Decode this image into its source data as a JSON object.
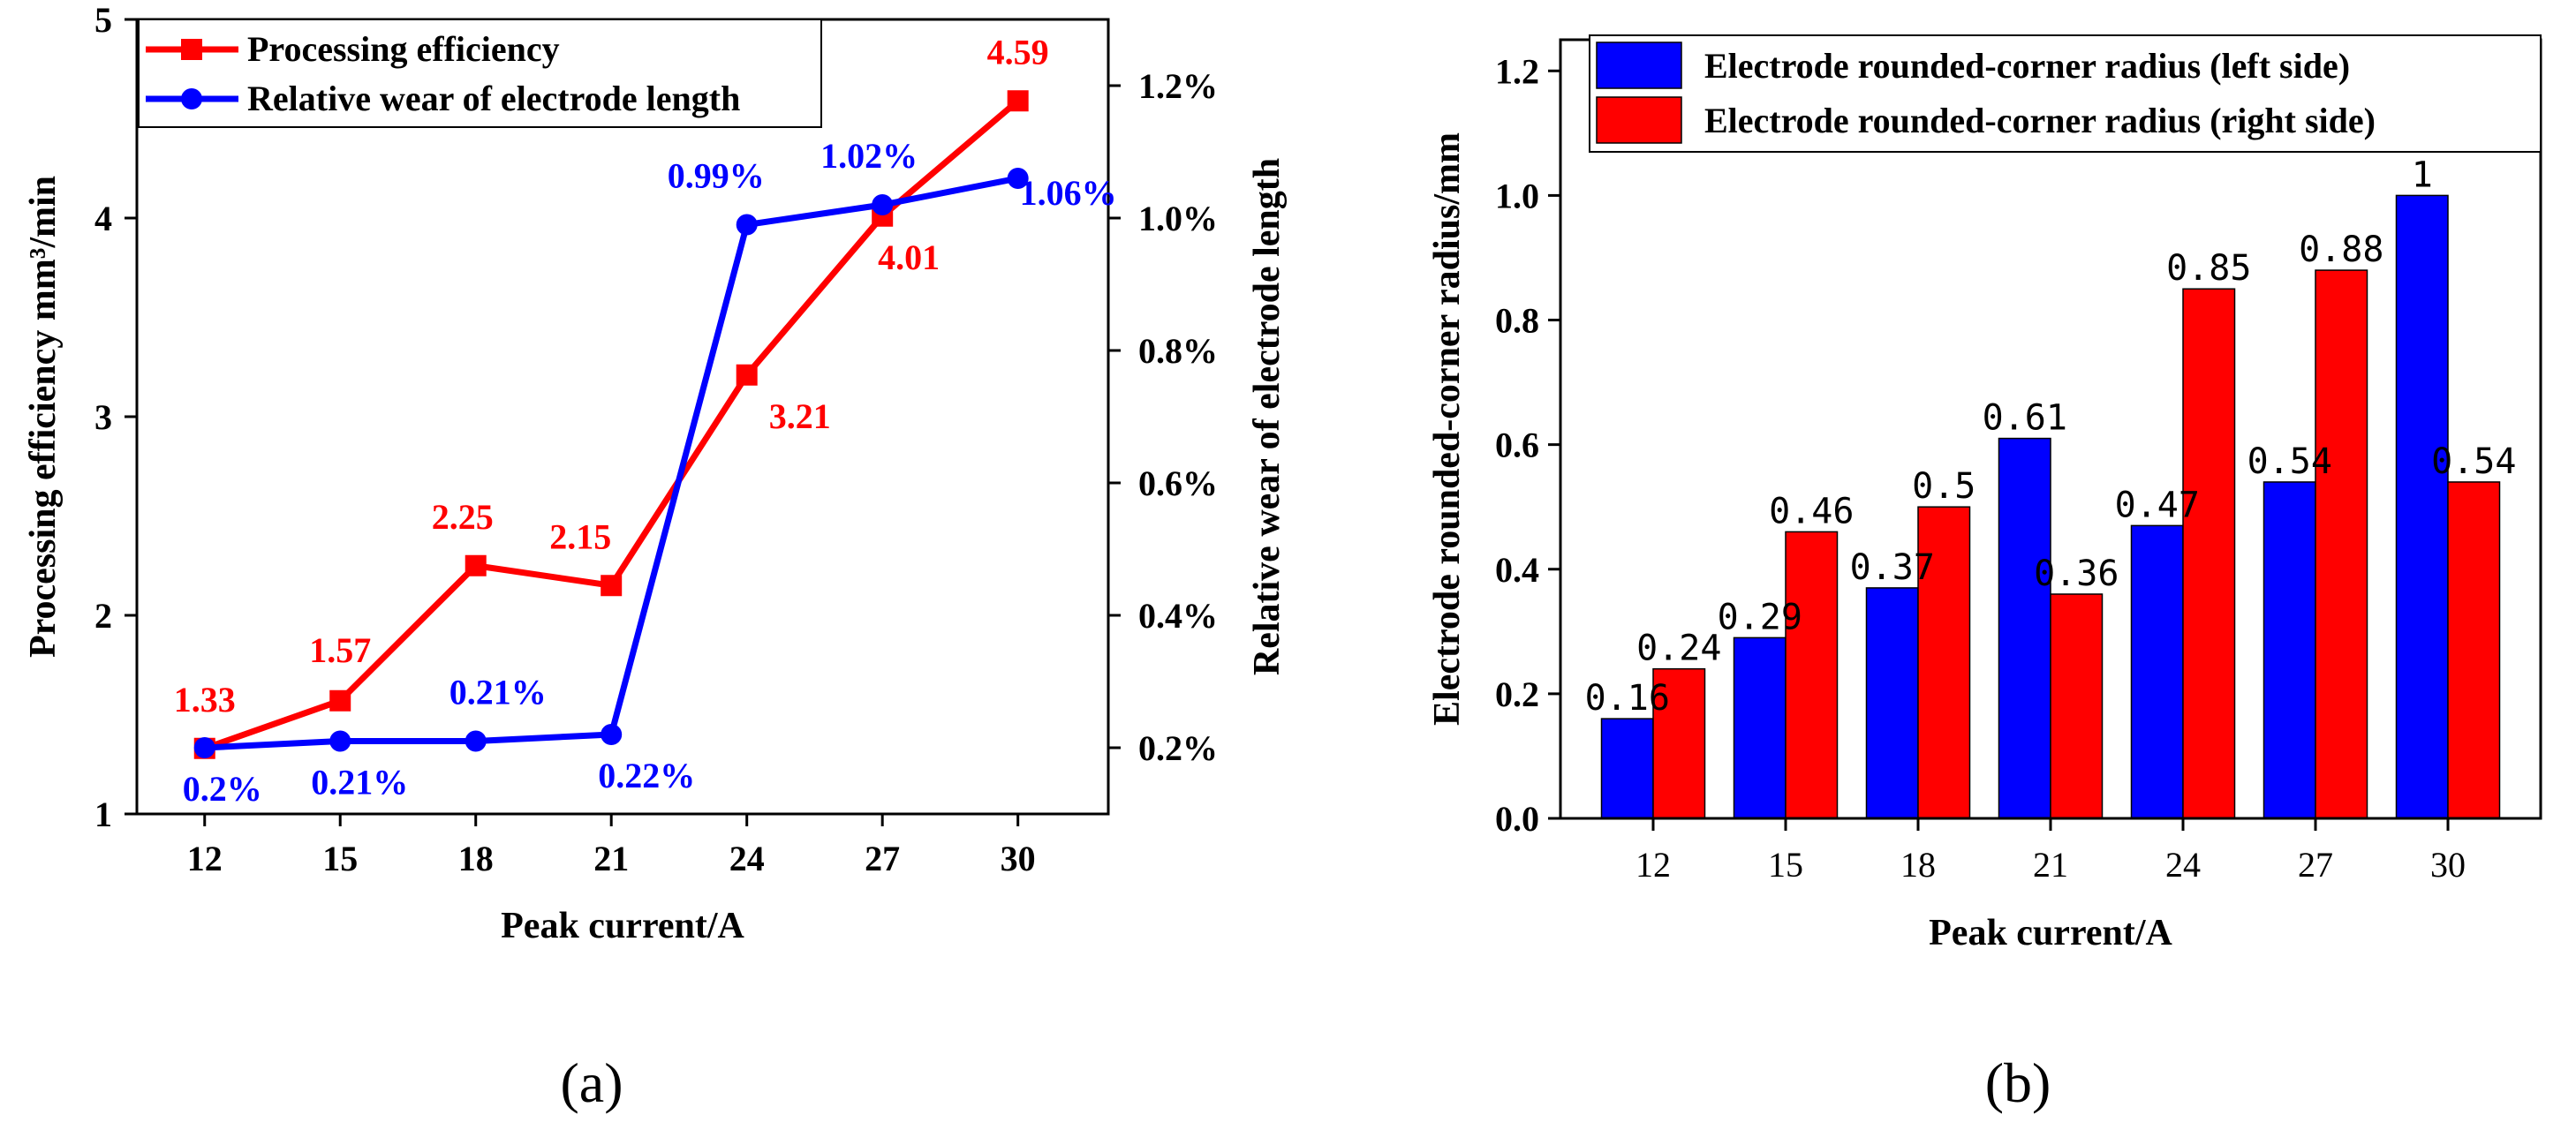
{
  "chart_data": [
    {
      "panel_label": "(a)",
      "type": "line",
      "x": [
        12,
        15,
        18,
        21,
        24,
        27,
        30
      ],
      "xlabel": "Peak current/A",
      "ylabel_left": "Processing efficiency mm³/min",
      "ylabel_right": "Relative wear of electrode length",
      "ylim_left": [
        1,
        5
      ],
      "ylim_right": [
        0.1,
        1.3
      ],
      "yticks_left": [
        1,
        2,
        3,
        4,
        5
      ],
      "yticks_right": [
        0.2,
        0.4,
        0.6,
        0.8,
        1.0,
        1.2
      ],
      "ytick_labels_right": [
        "0.2%",
        "0.4%",
        "0.6%",
        "0.8%",
        "1.0%",
        "1.2%"
      ],
      "legend_position": "top-left",
      "series": [
        {
          "name": "Processing efficiency",
          "axis": "left",
          "color": "#ff0000",
          "marker": "square",
          "values": [
            1.33,
            1.57,
            2.25,
            2.15,
            3.21,
            4.01,
            4.59
          ],
          "labels": [
            "1.33",
            "1.57",
            "2.25",
            "2.15",
            "3.21",
            "4.01",
            "4.59"
          ]
        },
        {
          "name": "Relative wear of electrode length",
          "axis": "right",
          "color": "#0000ff",
          "marker": "circle",
          "values": [
            0.2,
            0.21,
            0.21,
            0.22,
            0.99,
            1.02,
            1.06
          ],
          "labels": [
            "0.2%",
            "0.21%",
            "0.21%",
            "0.22%",
            "0.99%",
            "1.02%",
            "1.06%"
          ]
        }
      ]
    },
    {
      "panel_label": "(b)",
      "type": "bar",
      "categories": [
        "12",
        "15",
        "18",
        "21",
        "24",
        "27",
        "30"
      ],
      "xlabel": "Peak current/A",
      "ylabel": "Electrode rounded-corner radius/mm",
      "ylim": [
        0,
        1.25
      ],
      "yticks": [
        0.0,
        0.2,
        0.4,
        0.6,
        0.8,
        1.0,
        1.2
      ],
      "ytick_labels": [
        "0.0",
        "0.2",
        "0.4",
        "0.6",
        "0.8",
        "1.0",
        "1.2"
      ],
      "legend_position": "top-right",
      "series": [
        {
          "name": "Electrode rounded-corner radius (left side)",
          "color": "#0000ff",
          "values": [
            0.16,
            0.29,
            0.37,
            0.61,
            0.47,
            0.54,
            1.0
          ],
          "labels": [
            "0.16",
            "0.29",
            "0.37",
            "0.61",
            "0.47",
            "0.54",
            "1"
          ]
        },
        {
          "name": "Electrode rounded-corner radius (right side)",
          "color": "#ff0000",
          "values": [
            0.24,
            0.46,
            0.5,
            0.36,
            0.85,
            0.88,
            0.54
          ],
          "labels": [
            "0.24",
            "0.46",
            "0.5",
            "0.36",
            "0.85",
            "0.88",
            "0.54"
          ]
        }
      ]
    }
  ]
}
